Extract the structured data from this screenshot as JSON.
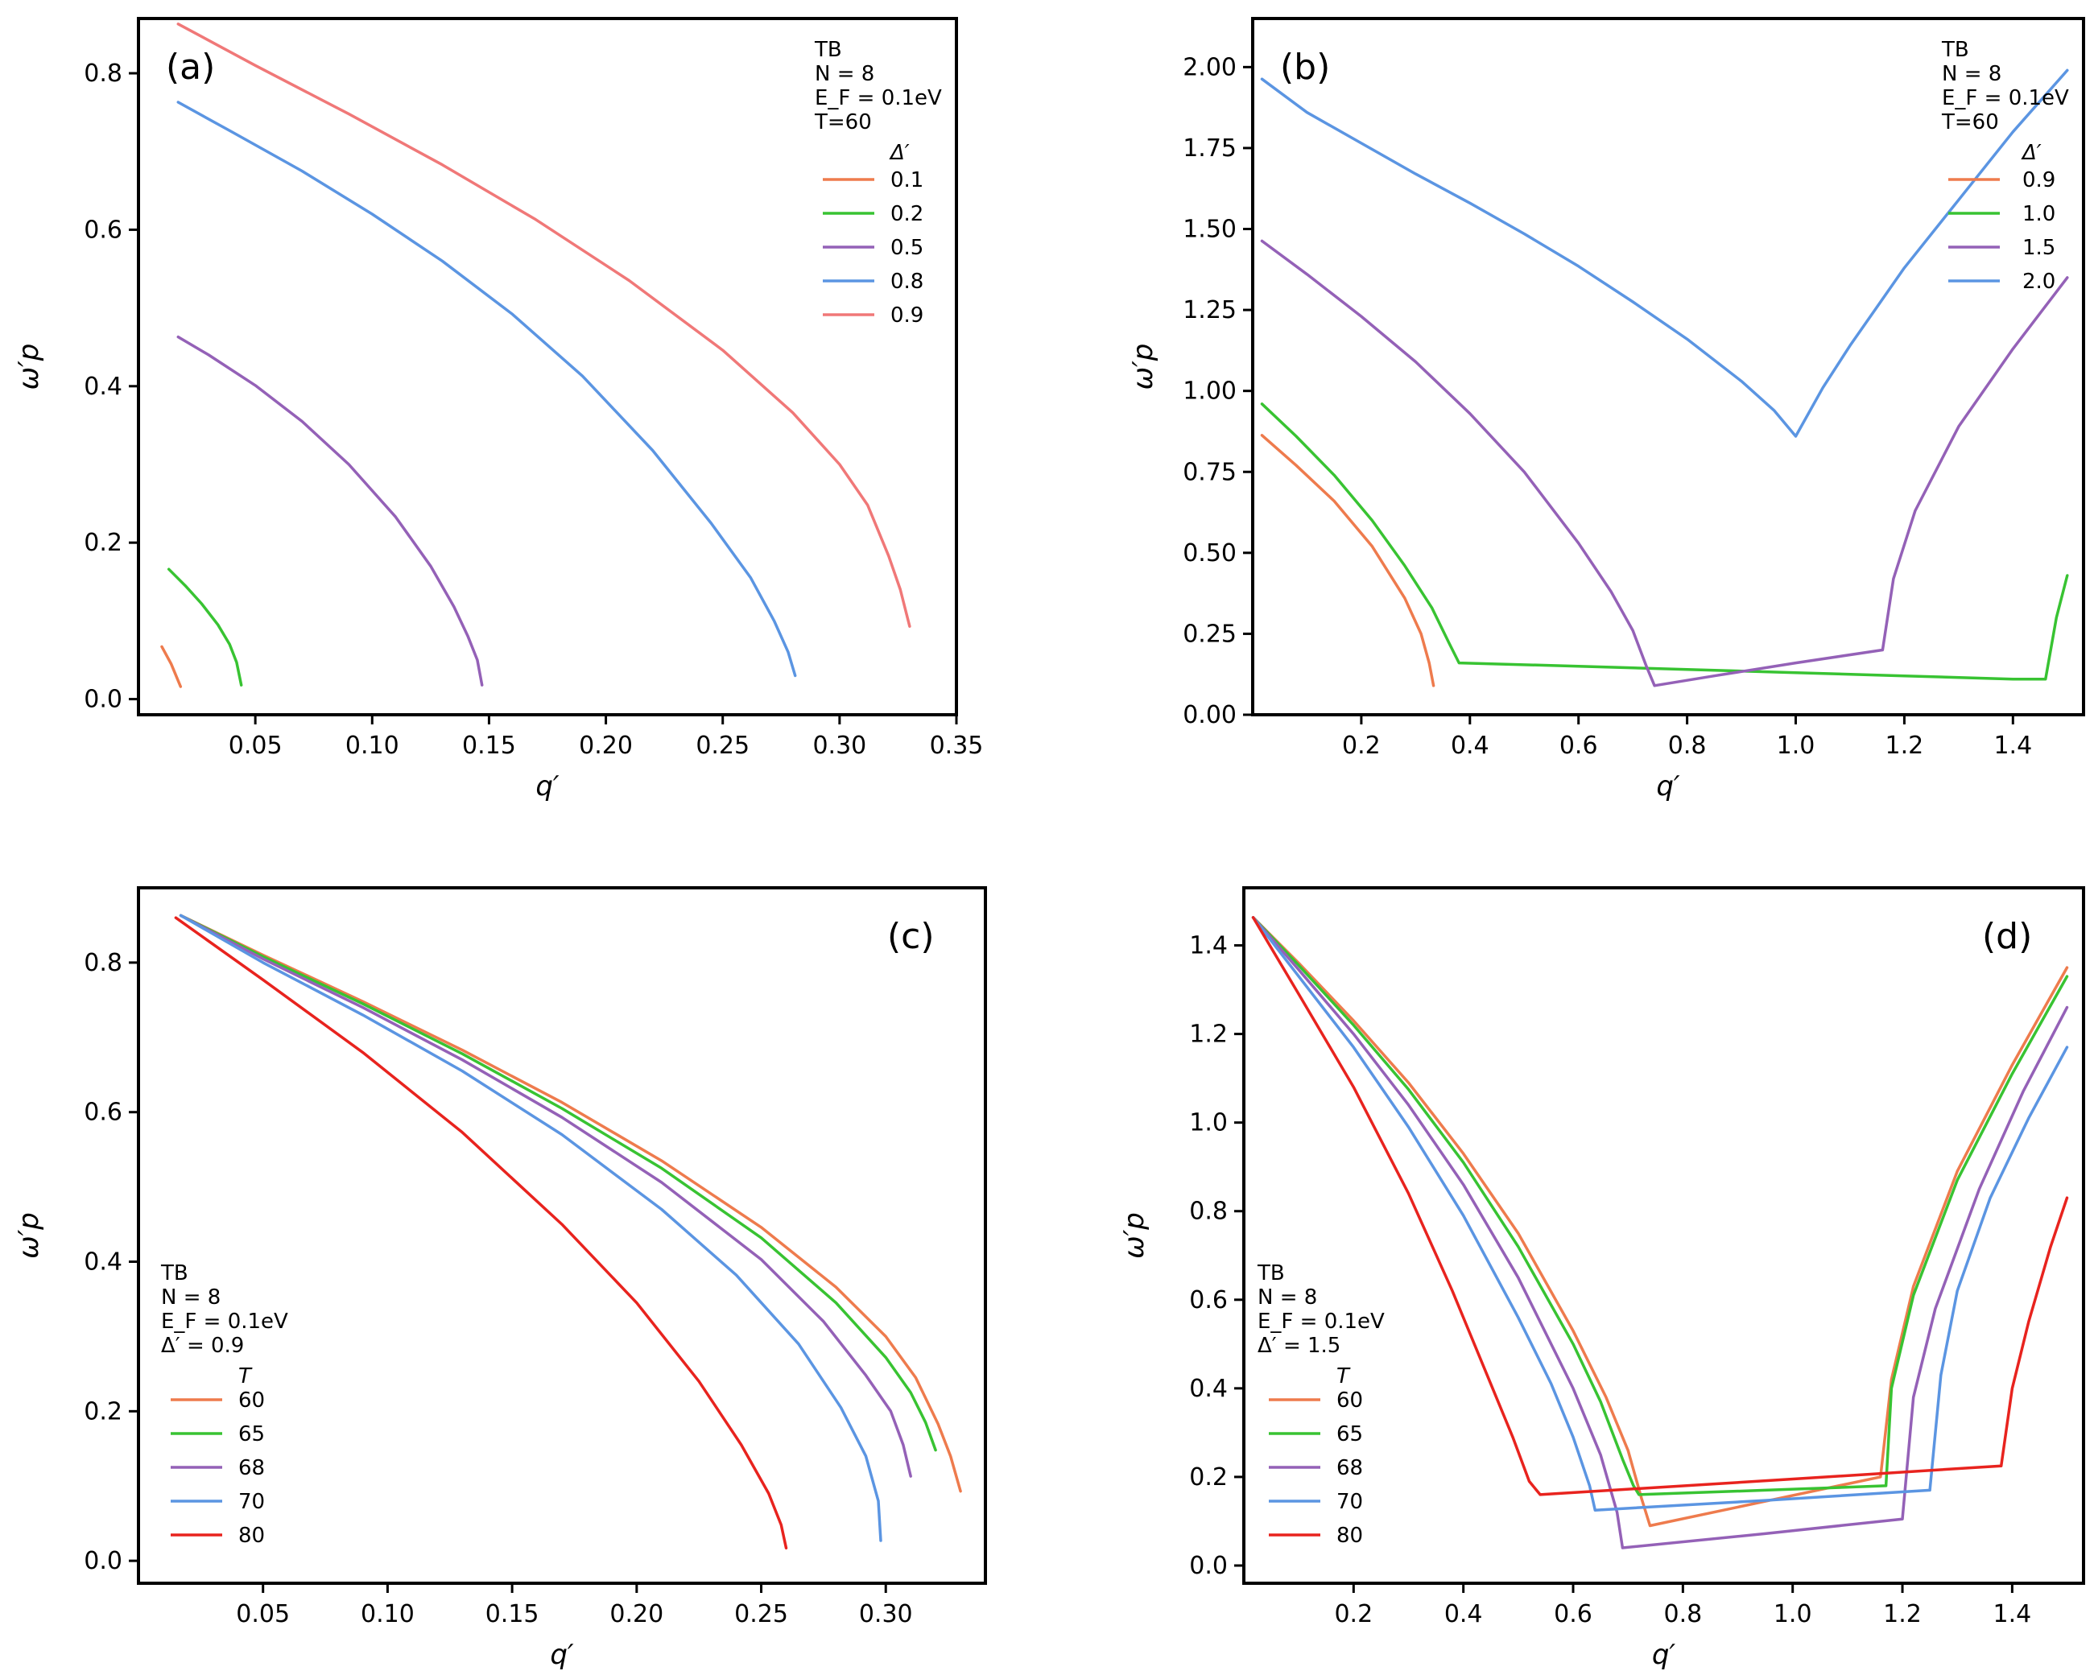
{
  "panels": [
    {
      "id": "a",
      "panel_label": "(a)",
      "legend": {
        "lines": [
          "TB",
          "N = 8",
          "E_F = 0.1eV",
          "T=60"
        ],
        "title": "Δ′"
      },
      "chart_data": {
        "type": "line",
        "xlabel": "q′",
        "ylabel": "ω′p",
        "xlim": [
          0.0,
          0.35
        ],
        "ylim": [
          -0.02,
          0.87
        ],
        "xticks": [
          0.05,
          0.1,
          0.15,
          0.2,
          0.25,
          0.3,
          0.35
        ],
        "xtick_labels": [
          "0.05",
          "0.10",
          "0.15",
          "0.20",
          "0.25",
          "0.30",
          "0.35"
        ],
        "yticks": [
          0.0,
          0.2,
          0.4,
          0.6,
          0.8
        ],
        "ytick_labels": [
          "0.0",
          "0.2",
          "0.4",
          "0.6",
          "0.8"
        ],
        "series": [
          {
            "name": "0.1",
            "color": "#ee7b4d",
            "x": [
              0.01,
              0.014,
              0.018
            ],
            "y": [
              0.067,
              0.045,
              0.016
            ]
          },
          {
            "name": "0.2",
            "color": "#38c332",
            "x": [
              0.013,
              0.02,
              0.027,
              0.034,
              0.039,
              0.042,
              0.044
            ],
            "y": [
              0.166,
              0.145,
              0.122,
              0.095,
              0.07,
              0.047,
              0.018
            ]
          },
          {
            "name": "0.5",
            "color": "#9461b7",
            "x": [
              0.017,
              0.03,
              0.05,
              0.07,
              0.09,
              0.11,
              0.125,
              0.135,
              0.141,
              0.145,
              0.147
            ],
            "y": [
              0.463,
              0.44,
              0.401,
              0.355,
              0.3,
              0.233,
              0.17,
              0.118,
              0.08,
              0.05,
              0.018
            ]
          },
          {
            "name": "0.8",
            "color": "#5b95e2",
            "x": [
              0.017,
              0.04,
              0.07,
              0.1,
              0.13,
              0.16,
              0.19,
              0.22,
              0.245,
              0.262,
              0.272,
              0.278,
              0.281
            ],
            "y": [
              0.763,
              0.725,
              0.675,
              0.62,
              0.56,
              0.492,
              0.413,
              0.318,
              0.225,
              0.155,
              0.1,
              0.06,
              0.03
            ]
          },
          {
            "name": "0.9",
            "color": "#f07878",
            "x": [
              0.017,
              0.05,
              0.09,
              0.13,
              0.17,
              0.21,
              0.25,
              0.28,
              0.3,
              0.312,
              0.321,
              0.326,
              0.33
            ],
            "y": [
              0.863,
              0.81,
              0.748,
              0.683,
              0.613,
              0.535,
              0.446,
              0.366,
              0.3,
              0.248,
              0.183,
              0.14,
              0.093
            ]
          }
        ]
      }
    },
    {
      "id": "b",
      "panel_label": "(b)",
      "legend": {
        "lines": [
          "TB",
          "N = 8",
          "E_F = 0.1eV",
          "T=60"
        ],
        "title": "Δ′"
      },
      "chart_data": {
        "type": "line",
        "xlabel": "q′",
        "ylabel": "ω′p",
        "xlim": [
          0.0,
          1.53
        ],
        "ylim": [
          0.0,
          2.15
        ],
        "xticks": [
          0.2,
          0.4,
          0.6,
          0.8,
          1.0,
          1.2,
          1.4
        ],
        "xtick_labels": [
          "0.2",
          "0.4",
          "0.6",
          "0.8",
          "1.0",
          "1.2",
          "1.4"
        ],
        "yticks": [
          0.0,
          0.25,
          0.5,
          0.75,
          1.0,
          1.25,
          1.5,
          1.75,
          2.0
        ],
        "ytick_labels": [
          "0.00",
          "0.25",
          "0.50",
          "0.75",
          "1.00",
          "1.25",
          "1.50",
          "1.75",
          "2.00"
        ],
        "series": [
          {
            "name": "0.9",
            "color": "#ee7b4d",
            "x": [
              0.017,
              0.08,
              0.15,
              0.22,
              0.28,
              0.31,
              0.325,
              0.333
            ],
            "y": [
              0.863,
              0.77,
              0.66,
              0.52,
              0.36,
              0.25,
              0.16,
              0.09
            ]
          },
          {
            "name": "1.0",
            "color": "#38c332",
            "x": [
              0.017,
              0.08,
              0.15,
              0.22,
              0.28,
              0.33,
              0.362,
              0.38,
              0.6,
              0.8,
              1.0,
              1.2,
              1.4,
              1.46,
              1.48,
              1.5
            ],
            "y": [
              0.96,
              0.86,
              0.74,
              0.6,
              0.46,
              0.33,
              0.22,
              0.16,
              0.15,
              0.14,
              0.13,
              0.12,
              0.11,
              0.11,
              0.3,
              0.43
            ]
          },
          {
            "name": "1.5",
            "color": "#9461b7",
            "x": [
              0.017,
              0.1,
              0.2,
              0.3,
              0.4,
              0.5,
              0.6,
              0.66,
              0.7,
              0.725,
              0.74,
              0.85,
              1.0,
              1.16,
              1.18,
              1.22,
              1.3,
              1.4,
              1.5
            ],
            "y": [
              1.463,
              1.36,
              1.23,
              1.09,
              0.93,
              0.75,
              0.53,
              0.38,
              0.26,
              0.15,
              0.09,
              0.12,
              0.16,
              0.2,
              0.42,
              0.63,
              0.89,
              1.13,
              1.35
            ]
          },
          {
            "name": "2.0",
            "color": "#5b95e2",
            "x": [
              0.017,
              0.1,
              0.2,
              0.3,
              0.4,
              0.5,
              0.6,
              0.7,
              0.8,
              0.9,
              0.96,
              1.0,
              1.05,
              1.1,
              1.2,
              1.3,
              1.4,
              1.5
            ],
            "y": [
              1.963,
              1.86,
              1.765,
              1.67,
              1.58,
              1.485,
              1.385,
              1.275,
              1.16,
              1.03,
              0.94,
              0.86,
              1.01,
              1.14,
              1.38,
              1.59,
              1.8,
              1.99
            ]
          }
        ]
      }
    },
    {
      "id": "c",
      "panel_label": "(c)",
      "legend": {
        "lines": [
          "TB",
          "N = 8",
          "E_F = 0.1eV",
          "Δ′ = 0.9"
        ],
        "title": "T"
      },
      "chart_data": {
        "type": "line",
        "xlabel": "q′",
        "ylabel": "ω′p",
        "xlim": [
          0.0,
          0.34
        ],
        "ylim": [
          -0.03,
          0.9
        ],
        "xticks": [
          0.05,
          0.1,
          0.15,
          0.2,
          0.25,
          0.3
        ],
        "xtick_labels": [
          "0.05",
          "0.10",
          "0.15",
          "0.20",
          "0.25",
          "0.30"
        ],
        "yticks": [
          0.0,
          0.2,
          0.4,
          0.6,
          0.8
        ],
        "ytick_labels": [
          "0.0",
          "0.2",
          "0.4",
          "0.6",
          "0.8"
        ],
        "series": [
          {
            "name": "60",
            "color": "#ee7b4d",
            "x": [
              0.017,
              0.05,
              0.09,
              0.13,
              0.17,
              0.21,
              0.25,
              0.28,
              0.3,
              0.312,
              0.321,
              0.326,
              0.33
            ],
            "y": [
              0.863,
              0.81,
              0.748,
              0.683,
              0.613,
              0.535,
              0.446,
              0.366,
              0.3,
              0.245,
              0.183,
              0.14,
              0.093
            ]
          },
          {
            "name": "65",
            "color": "#38c332",
            "x": [
              0.017,
              0.05,
              0.09,
              0.13,
              0.17,
              0.21,
              0.25,
              0.28,
              0.3,
              0.31,
              0.316,
              0.32
            ],
            "y": [
              0.863,
              0.808,
              0.745,
              0.678,
              0.605,
              0.525,
              0.432,
              0.345,
              0.272,
              0.225,
              0.185,
              0.148
            ]
          },
          {
            "name": "68",
            "color": "#9461b7",
            "x": [
              0.017,
              0.05,
              0.09,
              0.13,
              0.17,
              0.21,
              0.25,
              0.275,
              0.292,
              0.302,
              0.307,
              0.31
            ],
            "y": [
              0.863,
              0.805,
              0.74,
              0.67,
              0.593,
              0.506,
              0.403,
              0.32,
              0.248,
              0.2,
              0.155,
              0.113
            ]
          },
          {
            "name": "70",
            "color": "#5b95e2",
            "x": [
              0.017,
              0.05,
              0.09,
              0.13,
              0.17,
              0.21,
              0.24,
              0.265,
              0.282,
              0.292,
              0.297,
              0.298
            ],
            "y": [
              0.863,
              0.8,
              0.73,
              0.655,
              0.57,
              0.47,
              0.382,
              0.29,
              0.205,
              0.14,
              0.08,
              0.027
            ]
          },
          {
            "name": "80",
            "color": "#e8231e",
            "x": [
              0.015,
              0.05,
              0.09,
              0.13,
              0.17,
              0.2,
              0.225,
              0.242,
              0.253,
              0.258,
              0.26
            ],
            "y": [
              0.86,
              0.777,
              0.68,
              0.573,
              0.45,
              0.345,
              0.24,
              0.155,
              0.09,
              0.048,
              0.017
            ]
          }
        ]
      }
    },
    {
      "id": "d",
      "panel_label": "(d)",
      "legend": {
        "lines": [
          "TB",
          "N = 8",
          "E_F = 0.1eV",
          "Δ′ = 1.5"
        ],
        "title": "T"
      },
      "chart_data": {
        "type": "line",
        "xlabel": "q′",
        "ylabel": "ω′p",
        "xlim": [
          0.0,
          1.53
        ],
        "ylim": [
          -0.04,
          1.53
        ],
        "xticks": [
          0.2,
          0.4,
          0.6,
          0.8,
          1.0,
          1.2,
          1.4
        ],
        "xtick_labels": [
          "0.2",
          "0.4",
          "0.6",
          "0.8",
          "1.0",
          "1.2",
          "1.4"
        ],
        "yticks": [
          0.0,
          0.2,
          0.4,
          0.6,
          0.8,
          1.0,
          1.2,
          1.4
        ],
        "ytick_labels": [
          "0.0",
          "0.2",
          "0.4",
          "0.6",
          "0.8",
          "1.0",
          "1.2",
          "1.4"
        ],
        "series": [
          {
            "name": "60",
            "color": "#ee7b4d",
            "x": [
              0.017,
              0.1,
              0.2,
              0.3,
              0.4,
              0.5,
              0.6,
              0.66,
              0.7,
              0.725,
              0.74,
              0.95,
              1.16,
              1.18,
              1.22,
              1.3,
              1.4,
              1.5
            ],
            "y": [
              1.463,
              1.36,
              1.23,
              1.09,
              0.93,
              0.75,
              0.53,
              0.38,
              0.26,
              0.15,
              0.09,
              0.145,
              0.2,
              0.42,
              0.63,
              0.89,
              1.13,
              1.35
            ]
          },
          {
            "name": "65",
            "color": "#38c332",
            "x": [
              0.017,
              0.1,
              0.2,
              0.3,
              0.4,
              0.5,
              0.6,
              0.65,
              0.69,
              0.71,
              0.72,
              0.95,
              1.17,
              1.18,
              1.22,
              1.3,
              1.4,
              1.5
            ],
            "y": [
              1.463,
              1.355,
              1.22,
              1.075,
              0.91,
              0.72,
              0.5,
              0.37,
              0.24,
              0.18,
              0.16,
              0.17,
              0.18,
              0.4,
              0.61,
              0.87,
              1.11,
              1.33
            ]
          },
          {
            "name": "68",
            "color": "#9461b7",
            "x": [
              0.017,
              0.1,
              0.2,
              0.3,
              0.4,
              0.5,
              0.6,
              0.65,
              0.68,
              0.69,
              0.95,
              1.2,
              1.22,
              1.26,
              1.34,
              1.42,
              1.5
            ],
            "y": [
              1.463,
              1.345,
              1.2,
              1.04,
              0.86,
              0.65,
              0.4,
              0.25,
              0.12,
              0.04,
              0.072,
              0.105,
              0.38,
              0.58,
              0.85,
              1.07,
              1.26
            ]
          },
          {
            "name": "70",
            "color": "#5b95e2",
            "x": [
              0.017,
              0.1,
              0.2,
              0.3,
              0.4,
              0.5,
              0.56,
              0.6,
              0.63,
              0.64,
              0.95,
              1.25,
              1.27,
              1.3,
              1.36,
              1.43,
              1.5
            ],
            "y": [
              1.463,
              1.33,
              1.17,
              0.99,
              0.79,
              0.56,
              0.41,
              0.29,
              0.18,
              0.125,
              0.147,
              0.17,
              0.43,
              0.62,
              0.83,
              1.01,
              1.17
            ]
          },
          {
            "name": "80",
            "color": "#e8231e",
            "x": [
              0.017,
              0.1,
              0.2,
              0.3,
              0.38,
              0.44,
              0.49,
              0.52,
              0.54,
              0.96,
              1.38,
              1.4,
              1.43,
              1.47,
              1.5
            ],
            "y": [
              1.463,
              1.29,
              1.08,
              0.84,
              0.62,
              0.44,
              0.29,
              0.19,
              0.16,
              0.192,
              0.225,
              0.4,
              0.55,
              0.72,
              0.83
            ]
          }
        ]
      }
    }
  ]
}
